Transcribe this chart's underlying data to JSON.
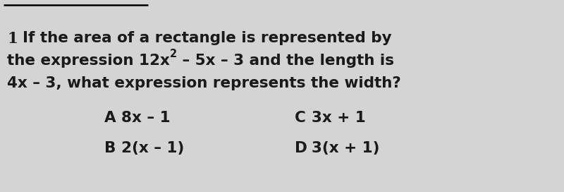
{
  "background_color": "#d4d4d4",
  "top_line_color": "#000000",
  "text_color": "#1a1a1a",
  "font_size_question": 15.5,
  "font_size_answers": 15.5,
  "line1": "If the area of a rectangle is represented by",
  "line2_prefix": "the expression 12x",
  "line2_sup": "2",
  "line2_suffix": " – 5x – 3 and the length is",
  "line3": "4x – 3, what expression represents the width?",
  "q_num": "1",
  "answer_A_label": "A",
  "answer_A_text": "8x – 1",
  "answer_B_label": "B",
  "answer_B_text": "2(x – 1)",
  "answer_C_label": "C",
  "answer_C_text": "3x + 1",
  "answer_D_label": "D",
  "answer_D_text": "3(x + 1)"
}
